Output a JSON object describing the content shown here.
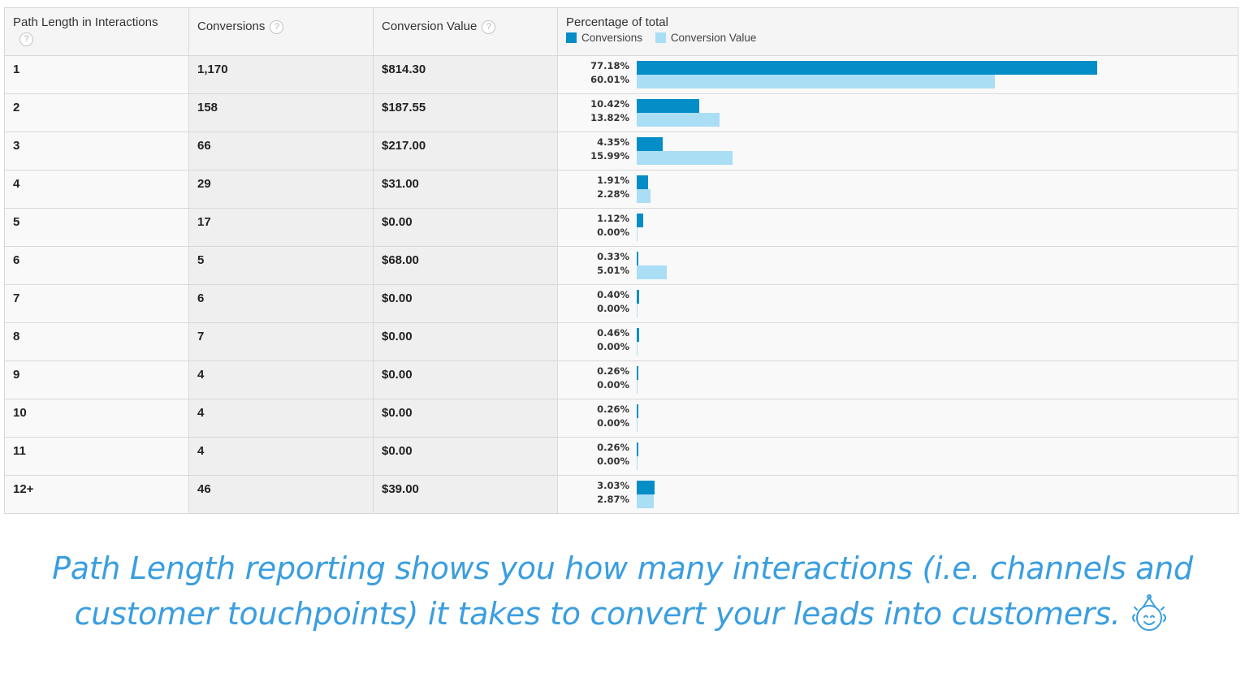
{
  "table": {
    "headers": {
      "path_length": "Path Length in Interactions",
      "conversions": "Conversions",
      "conversion_value": "Conversion Value",
      "percentage": "Percentage of total",
      "help": "?"
    },
    "legend": {
      "conversions": "Conversions",
      "conversion_value": "Conversion Value"
    },
    "rows": [
      {
        "path": "1",
        "conversions": "1,170",
        "value": "$814.30",
        "conv_pct": "77.18%",
        "val_pct": "60.01%"
      },
      {
        "path": "2",
        "conversions": "158",
        "value": "$187.55",
        "conv_pct": "10.42%",
        "val_pct": "13.82%"
      },
      {
        "path": "3",
        "conversions": "66",
        "value": "$217.00",
        "conv_pct": "4.35%",
        "val_pct": "15.99%"
      },
      {
        "path": "4",
        "conversions": "29",
        "value": "$31.00",
        "conv_pct": "1.91%",
        "val_pct": "2.28%"
      },
      {
        "path": "5",
        "conversions": "17",
        "value": "$0.00",
        "conv_pct": "1.12%",
        "val_pct": "0.00%"
      },
      {
        "path": "6",
        "conversions": "5",
        "value": "$68.00",
        "conv_pct": "0.33%",
        "val_pct": "5.01%"
      },
      {
        "path": "7",
        "conversions": "6",
        "value": "$0.00",
        "conv_pct": "0.40%",
        "val_pct": "0.00%"
      },
      {
        "path": "8",
        "conversions": "7",
        "value": "$0.00",
        "conv_pct": "0.46%",
        "val_pct": "0.00%"
      },
      {
        "path": "9",
        "conversions": "4",
        "value": "$0.00",
        "conv_pct": "0.26%",
        "val_pct": "0.00%"
      },
      {
        "path": "10",
        "conversions": "4",
        "value": "$0.00",
        "conv_pct": "0.26%",
        "val_pct": "0.00%"
      },
      {
        "path": "11",
        "conversions": "4",
        "value": "$0.00",
        "conv_pct": "0.26%",
        "val_pct": "0.00%"
      },
      {
        "path": "12+",
        "conversions": "46",
        "value": "$39.00",
        "conv_pct": "3.03%",
        "val_pct": "2.87%"
      }
    ]
  },
  "colors": {
    "conversions_bar": "#058dc7",
    "value_bar": "#a9def5",
    "caption_text": "#3a9ee0"
  },
  "caption": {
    "line1": "Path Length reporting shows you how many interactions (i.e. channels and",
    "line2": "customer touchpoints) it takes to convert your leads into customers.",
    "icon": "smiling-mascot-icon"
  }
}
